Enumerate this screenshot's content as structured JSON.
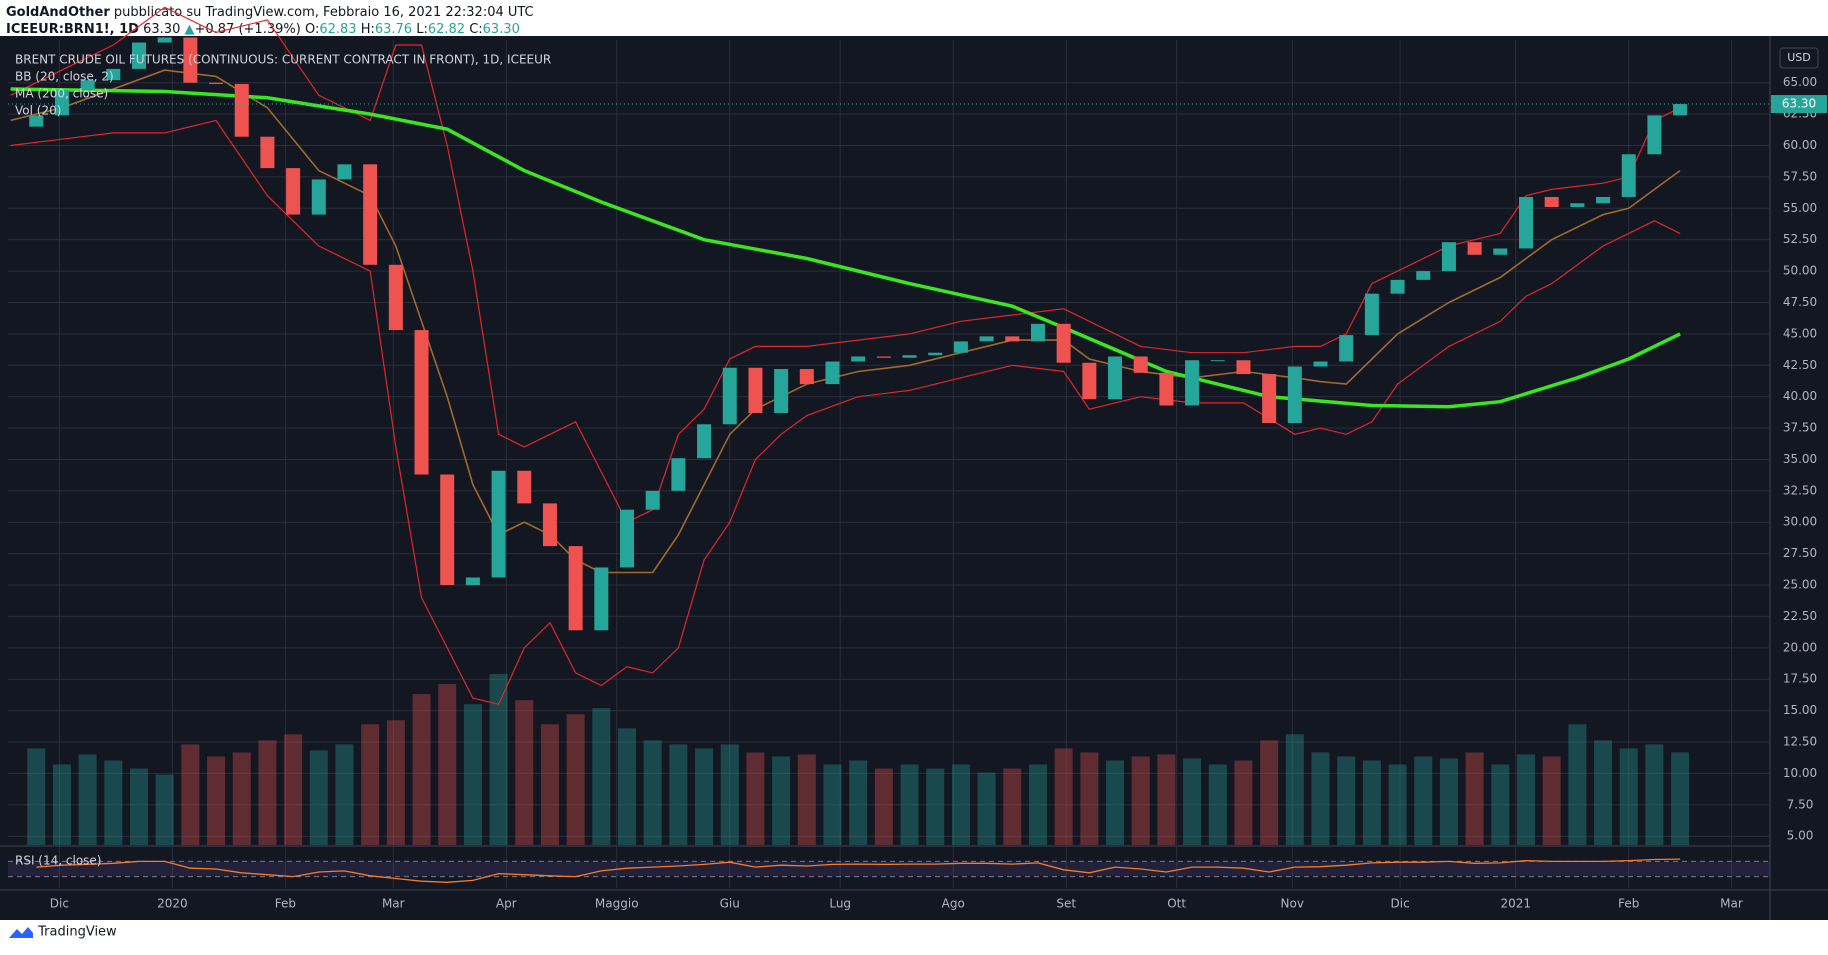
{
  "header": {
    "author": "GoldAndOther",
    "published": "pubblicato su TradingView.com, Febbraio 16, 2021 22:32:04 UTC",
    "symbol": "ICEEUR:BRN1!, 1D",
    "last": "63.30",
    "arrow": "▲",
    "change": "+0.87 (+1.39%)",
    "o_label": "O:",
    "o": "62.83",
    "h_label": "H:",
    "h": "63.76",
    "l_label": "L:",
    "l": "62.82",
    "c_label": "C:",
    "c": "63.30"
  },
  "footer": {
    "brand": "TradingView"
  },
  "chart_data": {
    "type": "candlestick",
    "title": "BRENT CRUDE OIL FUTURES (CONTINUOUS: CURRENT CONTRACT IN FRONT), 1D, ICEEUR",
    "currency": "USD",
    "up_color": "#26a69a",
    "down_color": "#ef5350",
    "xlim": [
      -1.1,
      67.5
    ],
    "xticks": [
      {
        "value": 0.9,
        "label": "Dic"
      },
      {
        "value": 5.3,
        "label": "2020"
      },
      {
        "value": 9.7,
        "label": "Feb"
      },
      {
        "value": 13.9,
        "label": "Mar"
      },
      {
        "value": 18.3,
        "label": "Apr"
      },
      {
        "value": 22.6,
        "label": "Maggio"
      },
      {
        "value": 27,
        "label": "Giu"
      },
      {
        "value": 31.3,
        "label": "Lug"
      },
      {
        "value": 35.7,
        "label": "Ago"
      },
      {
        "value": 40.1,
        "label": "Set"
      },
      {
        "value": 44.4,
        "label": "Ott"
      },
      {
        "value": 48.9,
        "label": "Nov"
      },
      {
        "value": 53.1,
        "label": "Dic"
      },
      {
        "value": 57.6,
        "label": "2021"
      },
      {
        "value": 62,
        "label": "Feb"
      },
      {
        "value": 66,
        "label": "Mar"
      }
    ],
    "ylim": [
      4.3,
      68.4
    ],
    "yticks": [
      {
        "value": 5,
        "label": "5.00"
      },
      {
        "value": 7.5,
        "label": "7.50"
      },
      {
        "value": 10,
        "label": "10.00"
      },
      {
        "value": 12.5,
        "label": "12.50"
      },
      {
        "value": 15,
        "label": "15.00"
      },
      {
        "value": 17.5,
        "label": "17.50"
      },
      {
        "value": 20,
        "label": "20.00"
      },
      {
        "value": 22.5,
        "label": "22.50"
      },
      {
        "value": 25,
        "label": "25.00"
      },
      {
        "value": 27.5,
        "label": "27.50"
      },
      {
        "value": 30,
        "label": "30.00"
      },
      {
        "value": 32.5,
        "label": "32.50"
      },
      {
        "value": 35,
        "label": "35.00"
      },
      {
        "value": 37.5,
        "label": "37.50"
      },
      {
        "value": 40,
        "label": "40.00"
      },
      {
        "value": 42.5,
        "label": "42.50"
      },
      {
        "value": 45,
        "label": "45.00"
      },
      {
        "value": 47.5,
        "label": "47.50"
      },
      {
        "value": 50,
        "label": "50.00"
      },
      {
        "value": 52.5,
        "label": "52.50"
      },
      {
        "value": 55,
        "label": "55.00"
      },
      {
        "value": 57.5,
        "label": "57.50"
      },
      {
        "value": 60,
        "label": "60.00"
      },
      {
        "value": 62.5,
        "label": "62.50"
      },
      {
        "value": 65,
        "label": "65.00"
      }
    ],
    "grid": true,
    "last_price": {
      "value": 63.3,
      "label": "63.30",
      "color": "#26a69a"
    },
    "price": {
      "open": [
        61.5,
        62.4,
        64.4,
        65.2,
        66.1,
        68.2,
        68.6,
        65.0,
        64.9,
        60.7,
        58.2,
        54.5,
        57.3,
        58.5,
        50.5,
        45.3,
        33.8,
        25.0,
        25.6,
        34.1,
        31.5,
        28.1,
        21.4,
        26.4,
        31.0,
        32.5,
        35.1,
        37.8,
        42.3,
        38.7,
        42.2,
        41.0,
        42.8,
        43.2,
        43.1,
        43.3,
        43.5,
        44.4,
        44.8,
        44.4,
        45.8,
        42.7,
        39.8,
        43.2,
        41.9,
        39.3,
        42.9,
        42.9,
        41.8,
        37.9,
        42.4,
        42.8,
        44.9,
        48.2,
        49.3,
        50.0,
        52.3,
        51.3,
        51.8,
        55.9,
        55.1,
        55.4,
        55.9,
        59.3,
        62.4
      ],
      "close": [
        62.4,
        64.4,
        65.2,
        66.1,
        68.2,
        68.6,
        65.0,
        64.9,
        60.7,
        58.2,
        54.5,
        57.3,
        58.5,
        50.5,
        45.3,
        33.8,
        25.0,
        25.6,
        34.1,
        31.5,
        28.1,
        21.4,
        26.4,
        31.0,
        32.5,
        35.1,
        37.8,
        42.3,
        38.7,
        42.2,
        41.0,
        42.8,
        43.2,
        43.1,
        43.3,
        43.5,
        44.4,
        44.8,
        44.4,
        45.8,
        42.7,
        39.8,
        43.2,
        41.9,
        39.3,
        42.9,
        42.9,
        41.8,
        37.9,
        42.4,
        42.8,
        44.9,
        48.2,
        49.3,
        50.0,
        52.3,
        51.3,
        51.8,
        55.9,
        55.1,
        55.4,
        55.9,
        59.3,
        62.4,
        63.3
      ]
    },
    "bb": {
      "name": "BB (20, close, 2)",
      "color": "#e0272b",
      "basis_color": "#a06a2c",
      "x": [
        -1,
        1,
        3,
        5,
        7,
        9,
        11,
        13,
        14,
        15,
        16,
        17,
        18,
        19,
        20,
        21,
        22,
        23,
        24,
        25,
        26,
        27,
        28,
        29,
        30,
        32,
        34,
        36,
        38,
        40,
        41,
        43,
        45,
        47,
        49,
        50,
        51,
        52,
        53,
        55,
        57,
        58,
        59,
        61,
        62,
        63,
        64
      ],
      "upper": [
        64,
        66,
        68,
        71,
        69,
        70,
        64,
        62,
        68,
        68,
        60,
        50,
        37,
        36,
        37,
        38,
        34,
        30,
        31,
        37,
        39,
        43,
        44,
        44,
        44,
        44.5,
        45,
        46,
        46.5,
        47,
        46,
        44,
        43.5,
        43.5,
        44,
        44,
        45,
        49,
        50,
        52,
        53,
        56,
        56.5,
        57,
        57.5,
        62,
        63
      ],
      "basis": [
        62,
        63,
        64.5,
        66,
        65.5,
        63,
        58,
        56,
        52,
        46,
        40,
        33,
        29,
        30,
        29,
        27,
        26,
        26,
        26,
        29,
        33,
        37,
        39,
        40,
        41,
        42,
        42.5,
        43.5,
        44.5,
        44.5,
        43,
        42,
        41.5,
        42,
        41.5,
        41.2,
        41,
        43,
        45,
        47.5,
        49.5,
        51,
        52.5,
        54.5,
        55,
        56.5,
        58
      ],
      "lower": [
        60,
        60.5,
        61,
        61,
        62,
        56,
        52,
        50,
        36,
        24,
        20,
        16,
        15.5,
        20,
        22,
        18,
        17,
        18.5,
        18,
        20,
        27,
        30,
        35,
        37,
        38.5,
        40,
        40.5,
        41.5,
        42.5,
        42,
        39,
        40,
        39.5,
        39.5,
        37,
        37.5,
        37,
        38,
        41,
        44,
        46,
        48,
        49,
        52,
        53,
        54,
        53
      ]
    },
    "ma": {
      "name": "MA (200, close)",
      "color": "#39e61f",
      "x": [
        -1,
        5,
        9,
        13,
        16,
        19,
        22,
        26,
        30,
        34,
        38,
        40,
        44,
        48,
        52,
        55,
        57,
        60,
        62,
        64
      ],
      "values": [
        64.5,
        64.3,
        63.8,
        62.5,
        61.3,
        58,
        55.5,
        52.5,
        51,
        49,
        47.2,
        45.5,
        42,
        40,
        39.3,
        39.2,
        39.6,
        41.5,
        43,
        45
      ]
    },
    "volume": {
      "name": "Vol (20)",
      "vlim": [
        0,
        400
      ],
      "values": [
        48,
        40,
        45,
        42,
        38,
        35,
        50,
        44,
        46,
        52,
        55,
        47,
        50,
        60,
        62,
        75,
        80,
        70,
        85,
        72,
        60,
        65,
        68,
        58,
        52,
        50,
        48,
        50,
        46,
        44,
        45,
        40,
        42,
        38,
        40,
        38,
        40,
        36,
        38,
        40,
        48,
        46,
        42,
        44,
        45,
        43,
        40,
        42,
        52,
        55,
        46,
        44,
        42,
        40,
        44,
        43,
        46,
        40,
        45,
        44,
        60,
        52,
        48,
        50,
        46
      ]
    },
    "rsi": {
      "name": "RSI (14, close)",
      "color": "#f57c2c",
      "ylim": [
        0,
        100
      ],
      "bands": [
        30,
        70
      ],
      "values": [
        55,
        60,
        62,
        65,
        70,
        70,
        52,
        50,
        40,
        35,
        30,
        42,
        45,
        32,
        25,
        18,
        15,
        20,
        38,
        35,
        32,
        30,
        45,
        52,
        55,
        58,
        62,
        68,
        55,
        60,
        58,
        62,
        63,
        62,
        63,
        63,
        65,
        65,
        63,
        66,
        48,
        40,
        55,
        50,
        42,
        55,
        55,
        52,
        42,
        55,
        56,
        60,
        66,
        68,
        68,
        70,
        65,
        66,
        72,
        70,
        70,
        70,
        72,
        75,
        76
      ]
    }
  }
}
